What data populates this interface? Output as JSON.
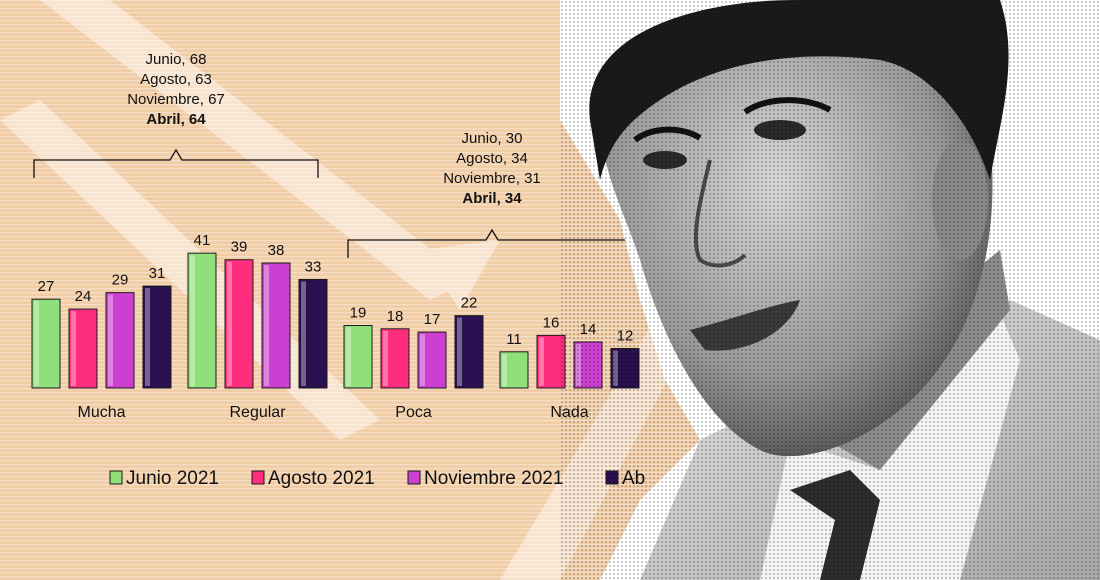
{
  "chart_data": {
    "type": "bar",
    "categories": [
      "Mucha",
      "Regular",
      "Poca",
      "Nada"
    ],
    "series": [
      {
        "name": "Junio 2021",
        "values": [
          27,
          41,
          19,
          11
        ]
      },
      {
        "name": "Agosto 2021",
        "values": [
          24,
          39,
          18,
          16
        ]
      },
      {
        "name": "Noviembre 2021",
        "values": [
          29,
          38,
          17,
          14
        ]
      },
      {
        "name": "Ab",
        "values": [
          31,
          33,
          22,
          12
        ]
      }
    ],
    "ylim": [
      0,
      45
    ],
    "legend_position": "bottom",
    "annotations": [
      {
        "lines": [
          "Junio, 68",
          "Agosto, 63",
          "Noviembre, 67"
        ],
        "bold_line": "Abril, 64",
        "groups": [
          "Mucha",
          "Regular"
        ]
      },
      {
        "lines": [
          "Junio, 30",
          "Agosto, 34",
          "Noviembre, 31"
        ],
        "bold_line": "Abril, 34",
        "groups": [
          "Poca",
          "Nada"
        ]
      }
    ]
  },
  "colors": {
    "background": "#f1cda6",
    "series": [
      "#8fe07a",
      "#ff2d7e",
      "#cc3fd0",
      "#2a1050"
    ]
  }
}
